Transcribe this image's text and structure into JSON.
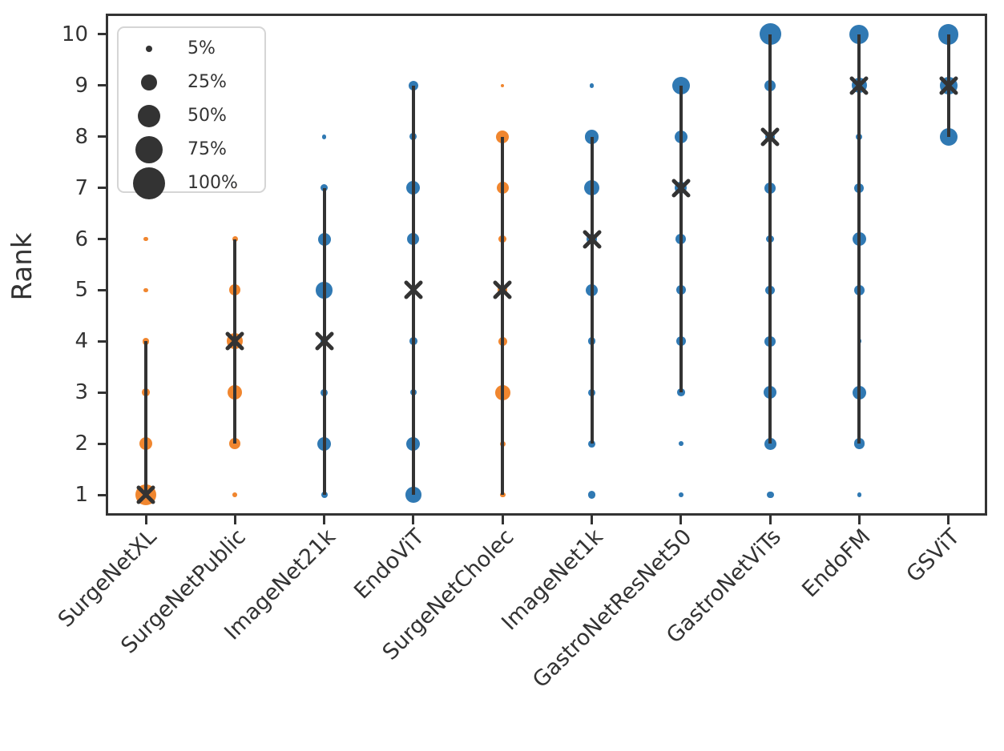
{
  "colors": {
    "blue": "#3079b3",
    "orange": "#f0862f",
    "dark": "#333333",
    "legend_border": "#d5d5d5"
  },
  "legend": {
    "items": [
      {
        "pct": 5,
        "label": "5%"
      },
      {
        "pct": 25,
        "label": "25%"
      },
      {
        "pct": 50,
        "label": "50%"
      },
      {
        "pct": 75,
        "label": "75%"
      },
      {
        "pct": 100,
        "label": "100%"
      }
    ]
  },
  "chart_data": {
    "type": "scatter",
    "subtype": "rank-bubble-plot",
    "title": "",
    "xlabel": "",
    "ylabel": "Rank",
    "ylim": [
      1,
      10
    ],
    "y_ticks": [
      1,
      2,
      3,
      4,
      5,
      6,
      7,
      8,
      9,
      10
    ],
    "grid": false,
    "legend_position": "upper left",
    "legend_sizes_pct": [
      5,
      25,
      50,
      75,
      100
    ],
    "x_tick_rotation": 45,
    "bubble_size_meaning": "percentage of runs achieving each rank; area scales with percent per legend",
    "x_categories": [
      "SurgeNetXL",
      "SurgeNetPublic",
      "ImageNet21k",
      "EndoViT",
      "SurgeNetCholec",
      "ImageNet1k",
      "GastroNetResNet50",
      "GastroNetViTs",
      "EndoFM",
      "GSViT"
    ],
    "series": [
      {
        "name": "SurgeNetXL",
        "color": "orange",
        "median_rank": 1,
        "line_range": [
          1,
          4
        ],
        "dots": [
          {
            "rank": 1,
            "pct": 45
          },
          {
            "rank": 2,
            "pct": 16
          },
          {
            "rank": 3,
            "pct": 6
          },
          {
            "rank": 4,
            "pct": 5
          },
          {
            "rank": 5,
            "pct": 2
          },
          {
            "rank": 6,
            "pct": 2
          }
        ]
      },
      {
        "name": "SurgeNetPublic",
        "color": "orange",
        "median_rank": 4,
        "line_range": [
          2,
          6
        ],
        "dots": [
          {
            "rank": 1,
            "pct": 2
          },
          {
            "rank": 2,
            "pct": 12
          },
          {
            "rank": 3,
            "pct": 20
          },
          {
            "rank": 4,
            "pct": 25
          },
          {
            "rank": 5,
            "pct": 12
          },
          {
            "rank": 6,
            "pct": 3
          },
          {
            "rank": 7,
            "pct": 1
          }
        ]
      },
      {
        "name": "ImageNet21k",
        "color": "blue",
        "median_rank": 4,
        "line_range": [
          1,
          7
        ],
        "dots": [
          {
            "rank": 1,
            "pct": 4
          },
          {
            "rank": 2,
            "pct": 18
          },
          {
            "rank": 3,
            "pct": 5
          },
          {
            "rank": 4,
            "pct": 6
          },
          {
            "rank": 5,
            "pct": 26
          },
          {
            "rank": 6,
            "pct": 16
          },
          {
            "rank": 7,
            "pct": 6
          },
          {
            "rank": 8,
            "pct": 2
          }
        ]
      },
      {
        "name": "EndoViT",
        "color": "blue",
        "median_rank": 5,
        "line_range": [
          1,
          9
        ],
        "dots": [
          {
            "rank": 1,
            "pct": 24
          },
          {
            "rank": 2,
            "pct": 18
          },
          {
            "rank": 3,
            "pct": 4
          },
          {
            "rank": 4,
            "pct": 6
          },
          {
            "rank": 5,
            "pct": 3
          },
          {
            "rank": 6,
            "pct": 14
          },
          {
            "rank": 7,
            "pct": 18
          },
          {
            "rank": 8,
            "pct": 5
          },
          {
            "rank": 9,
            "pct": 9
          }
        ]
      },
      {
        "name": "SurgeNetCholec",
        "color": "orange",
        "median_rank": 5,
        "line_range": [
          1,
          8
        ],
        "dots": [
          {
            "rank": 1,
            "pct": 3
          },
          {
            "rank": 2,
            "pct": 3
          },
          {
            "rank": 3,
            "pct": 22
          },
          {
            "rank": 4,
            "pct": 8
          },
          {
            "rank": 5,
            "pct": 9
          },
          {
            "rank": 6,
            "pct": 6
          },
          {
            "rank": 7,
            "pct": 14
          },
          {
            "rank": 8,
            "pct": 16
          },
          {
            "rank": 9,
            "pct": 1
          }
        ]
      },
      {
        "name": "ImageNet1k",
        "color": "blue",
        "median_rank": 6,
        "line_range": [
          2,
          8
        ],
        "dots": [
          {
            "rank": 1,
            "pct": 6
          },
          {
            "rank": 2,
            "pct": 5
          },
          {
            "rank": 3,
            "pct": 5
          },
          {
            "rank": 4,
            "pct": 6
          },
          {
            "rank": 5,
            "pct": 14
          },
          {
            "rank": 6,
            "pct": 12
          },
          {
            "rank": 7,
            "pct": 24
          },
          {
            "rank": 8,
            "pct": 20
          },
          {
            "rank": 9,
            "pct": 2
          }
        ]
      },
      {
        "name": "GastroNetResNet50",
        "color": "blue",
        "median_rank": 7,
        "line_range": [
          3,
          9
        ],
        "dots": [
          {
            "rank": 1,
            "pct": 2
          },
          {
            "rank": 2,
            "pct": 2
          },
          {
            "rank": 3,
            "pct": 6
          },
          {
            "rank": 4,
            "pct": 9
          },
          {
            "rank": 5,
            "pct": 9
          },
          {
            "rank": 6,
            "pct": 11
          },
          {
            "rank": 7,
            "pct": 14
          },
          {
            "rank": 8,
            "pct": 16
          },
          {
            "rank": 9,
            "pct": 30
          }
        ]
      },
      {
        "name": "GastroNetViTs",
        "color": "blue",
        "median_rank": 8,
        "line_range": [
          2,
          10
        ],
        "dots": [
          {
            "rank": 1,
            "pct": 5
          },
          {
            "rank": 2,
            "pct": 14
          },
          {
            "rank": 3,
            "pct": 16
          },
          {
            "rank": 4,
            "pct": 11
          },
          {
            "rank": 5,
            "pct": 8
          },
          {
            "rank": 6,
            "pct": 6
          },
          {
            "rank": 7,
            "pct": 12
          },
          {
            "rank": 8,
            "pct": 9
          },
          {
            "rank": 9,
            "pct": 12
          },
          {
            "rank": 10,
            "pct": 45
          }
        ]
      },
      {
        "name": "EndoFM",
        "color": "blue",
        "median_rank": 9,
        "line_range": [
          2,
          10
        ],
        "dots": [
          {
            "rank": 1,
            "pct": 2
          },
          {
            "rank": 2,
            "pct": 11
          },
          {
            "rank": 3,
            "pct": 18
          },
          {
            "rank": 4,
            "pct": 2
          },
          {
            "rank": 5,
            "pct": 11
          },
          {
            "rank": 6,
            "pct": 18
          },
          {
            "rank": 7,
            "pct": 9
          },
          {
            "rank": 8,
            "pct": 4
          },
          {
            "rank": 9,
            "pct": 23
          },
          {
            "rank": 10,
            "pct": 36
          }
        ]
      },
      {
        "name": "GSViT",
        "color": "blue",
        "median_rank": 9,
        "line_range": [
          8,
          10
        ],
        "dots": [
          {
            "rank": 8,
            "pct": 30
          },
          {
            "rank": 9,
            "pct": 30
          },
          {
            "rank": 10,
            "pct": 40
          }
        ]
      }
    ]
  }
}
